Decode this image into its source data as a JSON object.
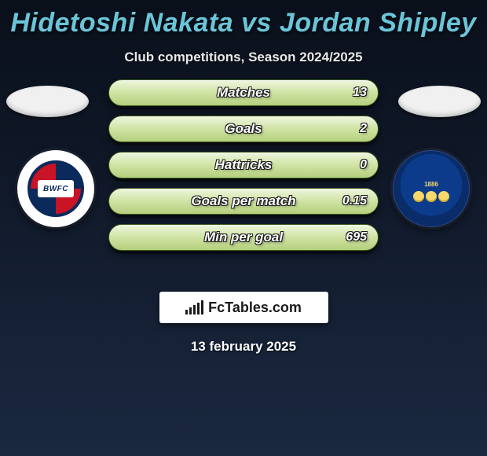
{
  "title": "Hidetoshi Nakata vs Jordan Shipley",
  "subtitle": "Club competitions, Season 2024/2025",
  "date": "13 february 2025",
  "brand": {
    "fc": "Fc",
    "tables": "Tables",
    "dotcom": ".com"
  },
  "left_crest_text": "BWFC",
  "right_crest_year": "1886",
  "stats": {
    "rows": [
      {
        "label": "Matches",
        "left": "",
        "right": "13"
      },
      {
        "label": "Goals",
        "left": "",
        "right": "2"
      },
      {
        "label": "Hattricks",
        "left": "",
        "right": "0"
      },
      {
        "label": "Goals per match",
        "left": "",
        "right": "0.15"
      },
      {
        "label": "Min per goal",
        "left": "",
        "right": "695"
      }
    ],
    "style": {
      "pill_bg_top": "#eef6df",
      "pill_bg_mid": "#cfe3a3",
      "pill_bg_bot": "#b5cf7d",
      "pill_border": "#3c5a18",
      "label_color": "#ffffff",
      "value_color": "#ffffff",
      "title_color": "#6bc5d8",
      "page_bg_top": "#0a0f1a",
      "page_bg_bot": "#1a2840",
      "pill_height": 34,
      "pill_gap": 12,
      "font_italic": true
    }
  }
}
